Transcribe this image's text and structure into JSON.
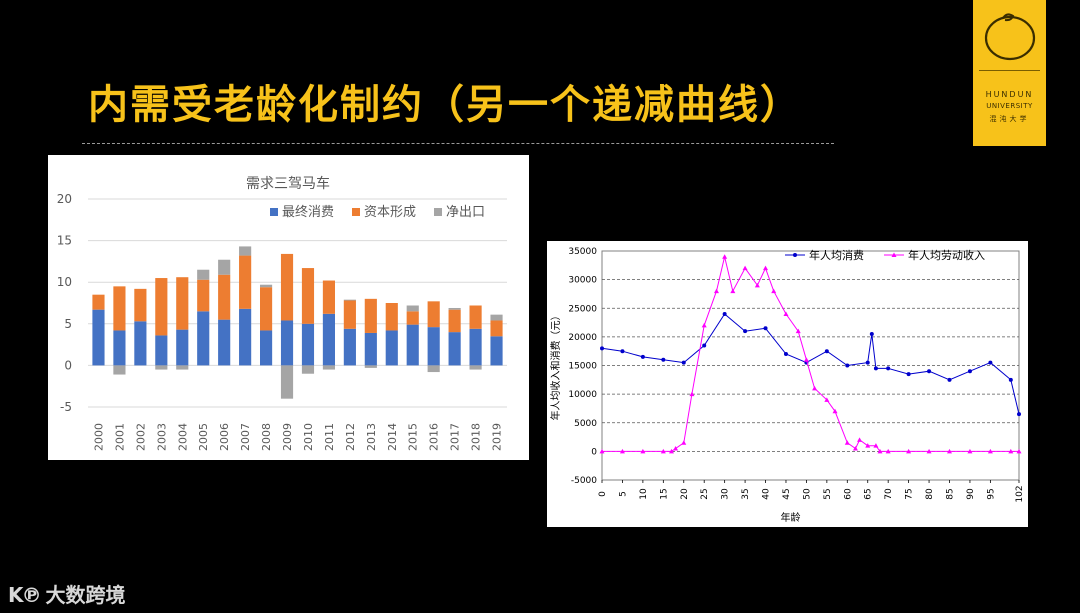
{
  "slide": {
    "title": "内需受老龄化制约（另一个递减曲线）",
    "logo_line1": "HUNDUN",
    "logo_line2": "UNIVERSITY",
    "logo_line3": "混沌大学",
    "watermark_mark": "K℗",
    "watermark_text": "大数跨境"
  },
  "colors": {
    "accent": "#f7c21a",
    "consumption": "#4472c4",
    "capital": "#ed7d31",
    "netexport": "#a5a5a5",
    "line_blue": "#0000cc",
    "line_pink": "#ff00ff"
  },
  "chart_data": [
    {
      "type": "bar",
      "stacked": true,
      "title": "需求三驾马车",
      "categories": [
        "2000",
        "2001",
        "2002",
        "2003",
        "2004",
        "2005",
        "2006",
        "2007",
        "2008",
        "2009",
        "2010",
        "2011",
        "2012",
        "2013",
        "2014",
        "2015",
        "2016",
        "2017",
        "2018",
        "2019"
      ],
      "series": [
        {
          "name": "最终消费",
          "values": [
            6.7,
            4.2,
            5.3,
            3.6,
            4.3,
            6.5,
            5.5,
            6.8,
            4.2,
            5.4,
            5.0,
            6.2,
            4.4,
            3.9,
            4.2,
            4.9,
            4.6,
            4.0,
            4.4,
            3.5
          ]
        },
        {
          "name": "资本形成",
          "values": [
            1.8,
            5.3,
            3.9,
            6.9,
            6.3,
            3.8,
            5.4,
            6.4,
            5.2,
            8.0,
            6.7,
            4.0,
            3.4,
            4.1,
            3.3,
            1.6,
            3.1,
            2.7,
            2.8,
            1.9
          ]
        },
        {
          "name": "净出口",
          "values": [
            0,
            -1.1,
            0,
            -0.5,
            -0.5,
            1.2,
            1.8,
            1.1,
            0.3,
            -4.0,
            -1.0,
            -0.5,
            0.1,
            -0.3,
            0,
            0.7,
            -0.8,
            0.2,
            -0.5,
            0.7
          ]
        }
      ],
      "ylim": [
        -5,
        20
      ],
      "yticks": [
        20,
        15,
        10,
        5,
        0,
        -5
      ],
      "legend": "top-right",
      "grid": true
    },
    {
      "type": "line",
      "title": "",
      "xlabel": "年龄",
      "ylabel": "年人均收入和消费（元）",
      "xlim": [
        0,
        102
      ],
      "ylim": [
        -5000,
        35000
      ],
      "yticks": [
        35000,
        30000,
        25000,
        20000,
        15000,
        10000,
        5000,
        0,
        -5000
      ],
      "xticks": [
        0,
        5,
        10,
        15,
        20,
        25,
        30,
        35,
        40,
        45,
        50,
        55,
        60,
        65,
        70,
        75,
        80,
        85,
        90,
        95,
        102
      ],
      "legend": "top",
      "grid": true,
      "series": [
        {
          "name": "年人均消费",
          "x": [
            0,
            5,
            10,
            15,
            20,
            25,
            30,
            35,
            40,
            45,
            50,
            55,
            60,
            65,
            66,
            67,
            70,
            75,
            80,
            85,
            90,
            95,
            100,
            102
          ],
          "y": [
            18000,
            17500,
            16500,
            16000,
            15500,
            18500,
            24000,
            21000,
            21500,
            17000,
            15500,
            17500,
            15000,
            15500,
            20500,
            14500,
            14500,
            13500,
            14000,
            12500,
            14000,
            15500,
            12500,
            6500
          ]
        },
        {
          "name": "年人均劳动收入",
          "x": [
            0,
            5,
            10,
            15,
            17,
            18,
            20,
            22,
            25,
            28,
            30,
            32,
            35,
            38,
            40,
            42,
            45,
            48,
            50,
            52,
            55,
            57,
            60,
            62,
            63,
            65,
            67,
            68,
            70,
            75,
            80,
            85,
            90,
            95,
            100,
            102
          ],
          "y": [
            0,
            0,
            0,
            0,
            0,
            500,
            1500,
            10000,
            22000,
            28000,
            34000,
            28000,
            32000,
            29000,
            32000,
            28000,
            24000,
            21000,
            16000,
            11000,
            9000,
            7000,
            1500,
            500,
            2000,
            1000,
            1000,
            0,
            0,
            0,
            0,
            0,
            0,
            0,
            0,
            0
          ]
        }
      ]
    }
  ]
}
